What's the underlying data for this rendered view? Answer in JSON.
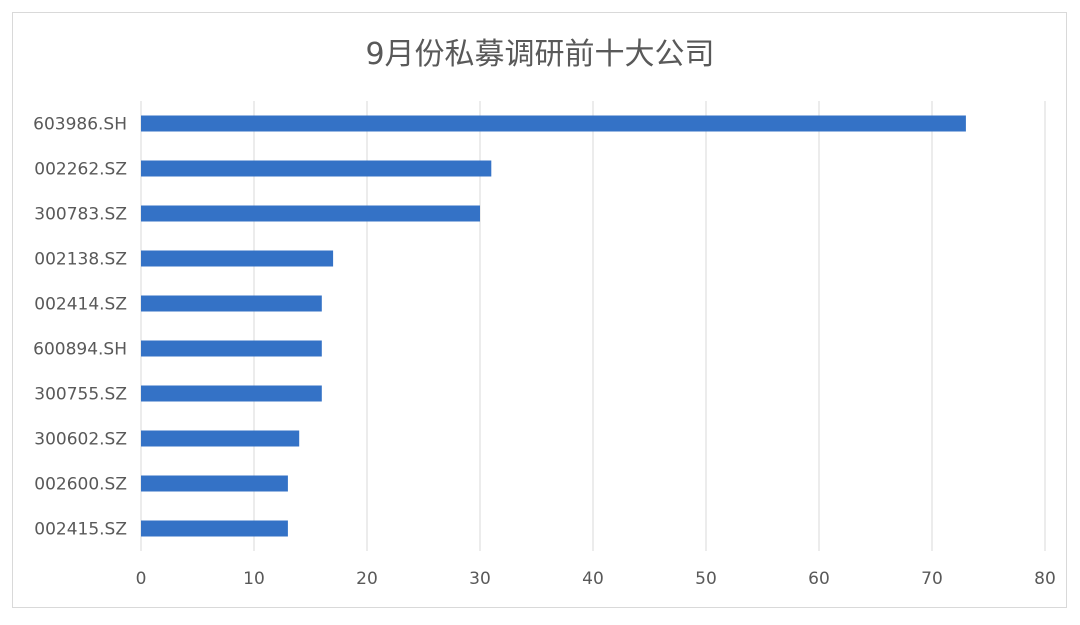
{
  "chart_data": {
    "type": "bar",
    "orientation": "horizontal",
    "title": "9月份私募调研前十大公司",
    "xlabel": "",
    "ylabel": "",
    "categories": [
      "603986.SH",
      "002262.SZ",
      "300783.SZ",
      "002138.SZ",
      "002414.SZ",
      "600894.SH",
      "300755.SZ",
      "300602.SZ",
      "002600.SZ",
      "002415.SZ"
    ],
    "values": [
      73,
      31,
      30,
      17,
      16,
      16,
      16,
      14,
      13,
      13
    ],
    "xlim": [
      0,
      80
    ],
    "xticks": [
      0,
      10,
      20,
      30,
      40,
      50,
      60,
      70,
      80
    ],
    "grid": "vertical",
    "legend": "none",
    "bar_color": "#3472c6"
  }
}
